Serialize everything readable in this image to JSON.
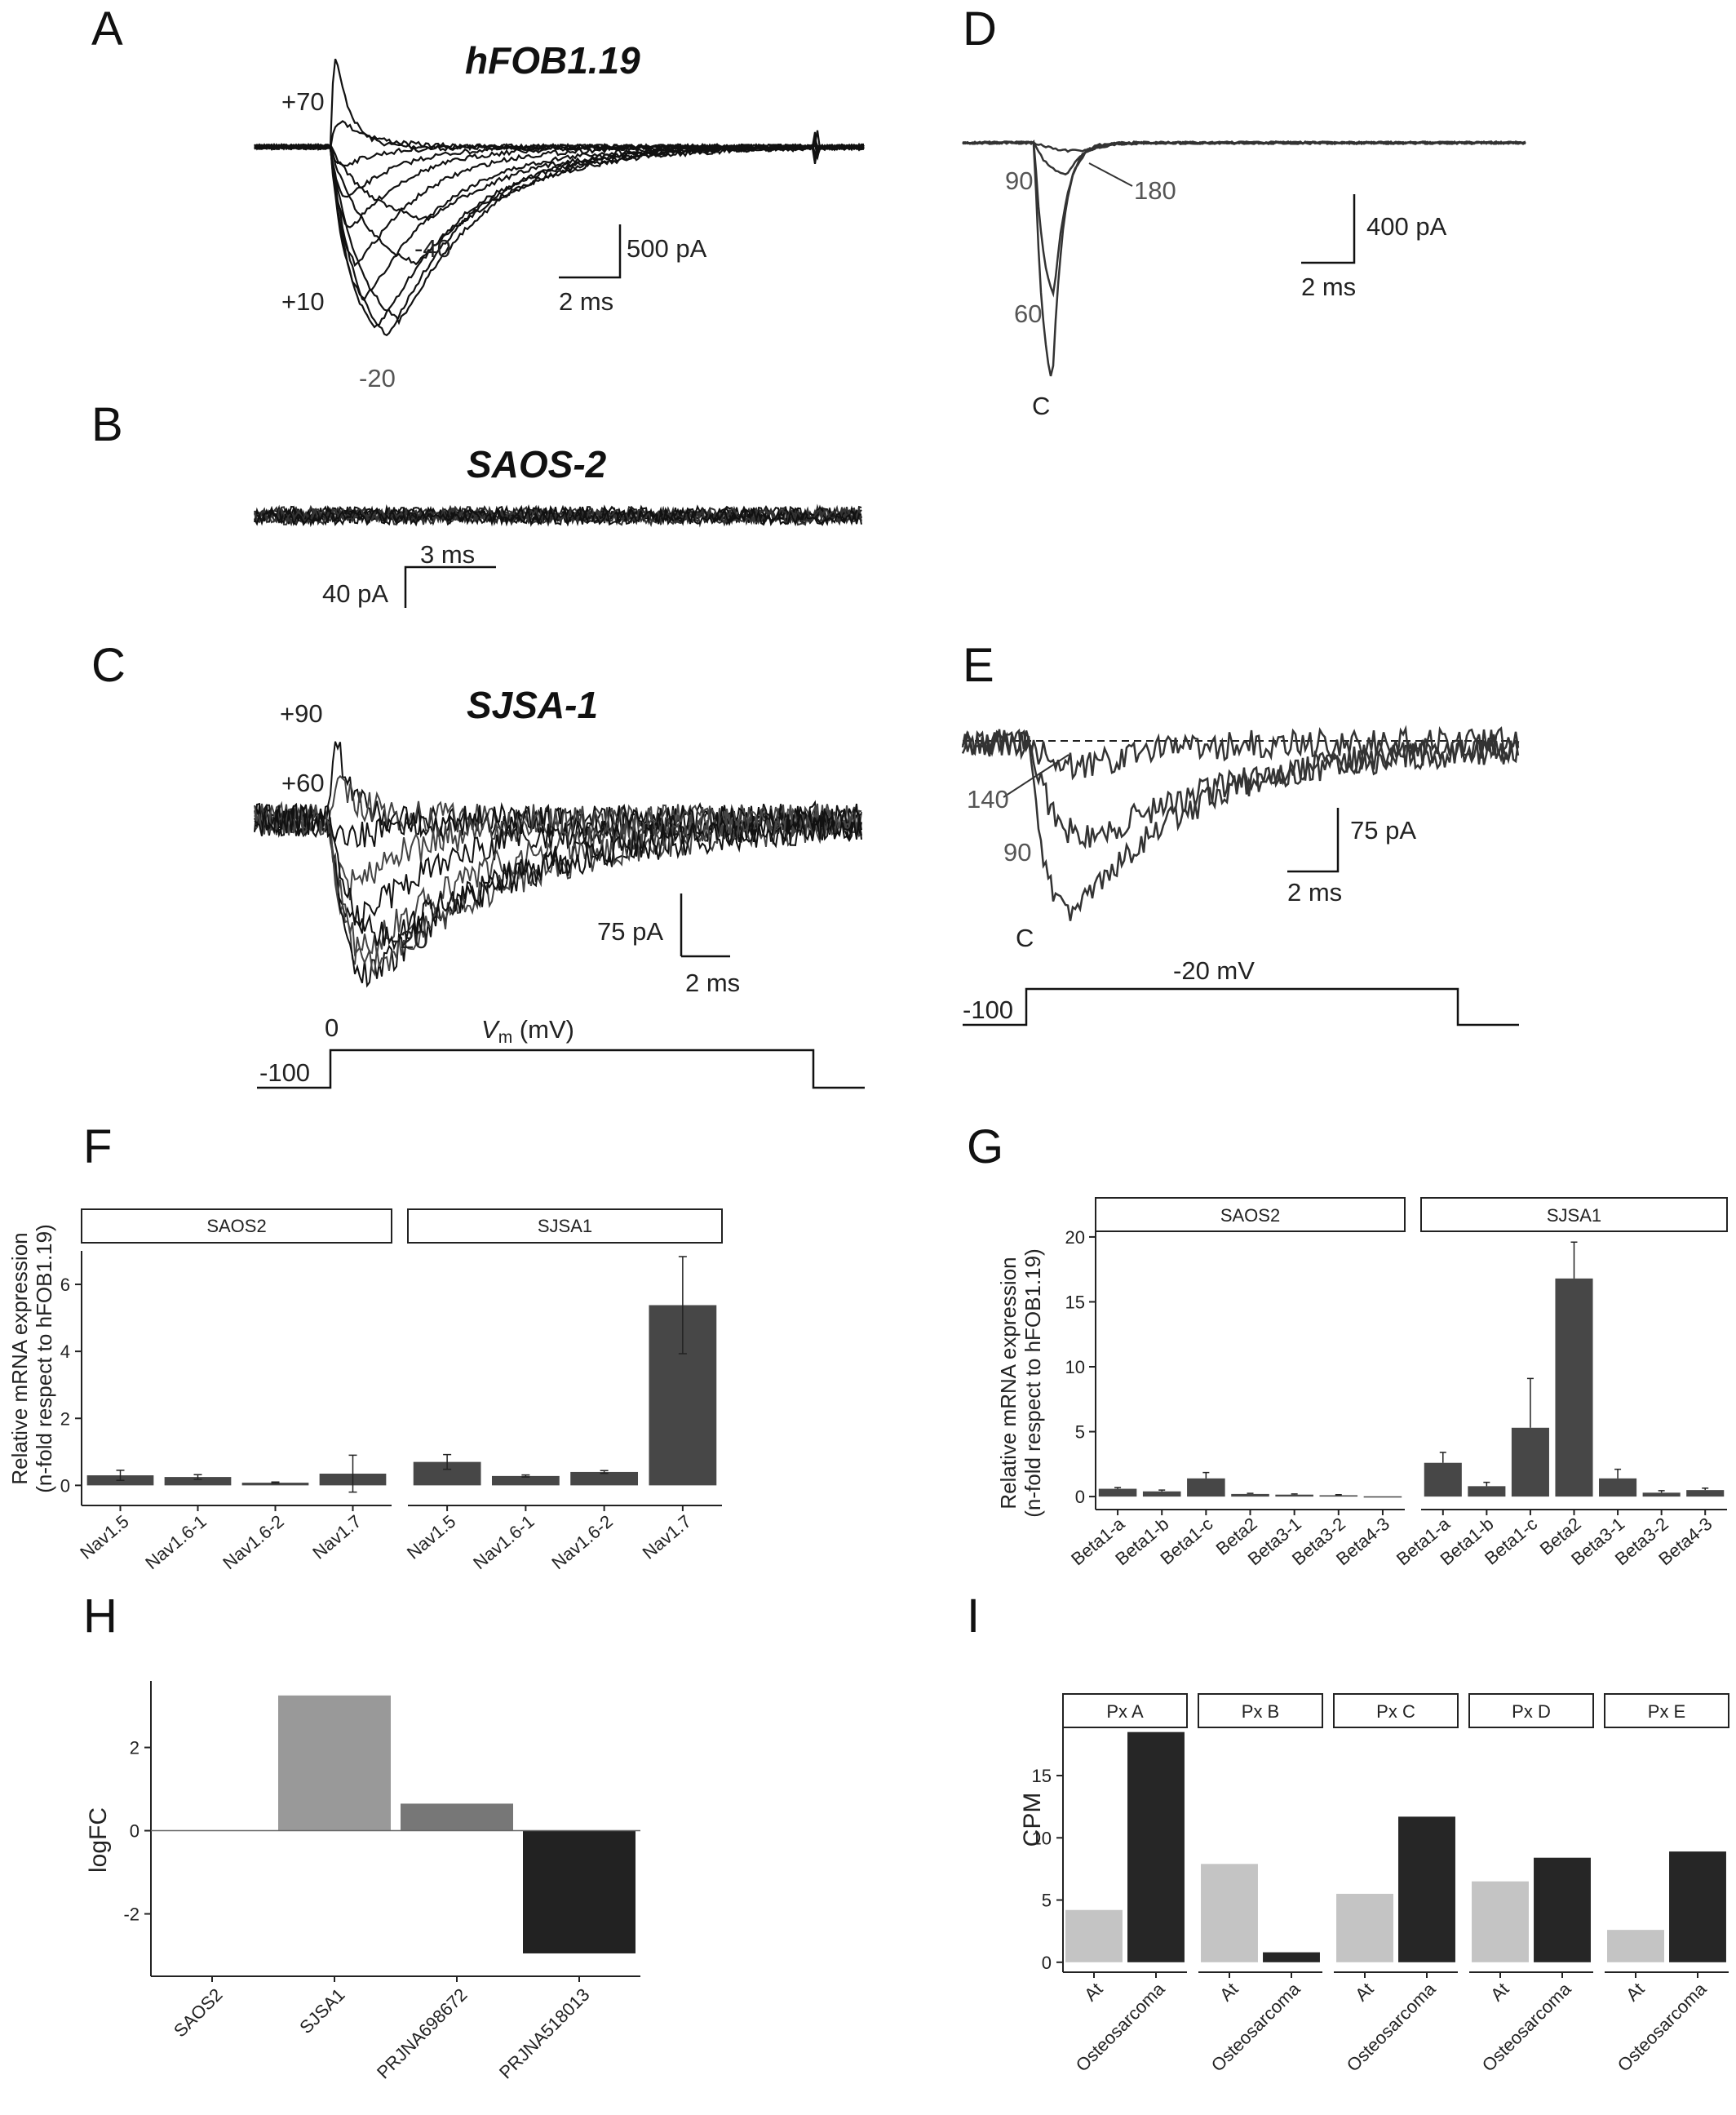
{
  "panels": [
    "A",
    "B",
    "C",
    "D",
    "E",
    "F",
    "G",
    "H",
    "I"
  ],
  "A": {
    "title": "hFOB1.19",
    "labels": [
      "+70",
      "+10",
      "-40",
      "-20"
    ],
    "scale_current": "500 pA",
    "scale_time": "2 ms"
  },
  "B": {
    "title": "SAOS-2",
    "scale_time": "3 ms",
    "scale_current": "40 pA"
  },
  "C": {
    "title": "SJSA-1",
    "labels": [
      "+90",
      "+60",
      "-20",
      "0"
    ],
    "scale_current": "75 pA",
    "scale_time": "2 ms",
    "protocol_label": "V",
    "protocol_sub": "m",
    "protocol_unit": " (mV)",
    "holding": "-100"
  },
  "D": {
    "labels": [
      "90",
      "180",
      "60",
      "C"
    ],
    "scale_current": "400 pA",
    "scale_time": "2 ms"
  },
  "E": {
    "labels": [
      "140",
      "90",
      "C"
    ],
    "scale_current": "75 pA",
    "scale_time": "2 ms",
    "step": "-20 mV",
    "holding": "-100"
  },
  "colors": {
    "trace": "#111111",
    "trace_grey": "#444444",
    "bar_dark": "#474747",
    "h_series": [
      "#999999",
      "#777777",
      "#222222"
    ],
    "i_at": "#c4c4c4",
    "i_osteo": "#262626"
  },
  "chart_data": [
    {
      "panel": "F",
      "type": "bar",
      "ylabel_line1": "Relative mRNA expression",
      "ylabel_line2": "(n-fold respect to hFOB1.19)",
      "ylim": [
        -0.6,
        7.0
      ],
      "yticks": [
        0,
        2,
        4,
        6
      ],
      "facets": [
        {
          "name": "SAOS2",
          "categories": [
            "Nav1.5",
            "Nav1.6-1",
            "Nav1.6-2",
            "Nav1.7"
          ],
          "values": [
            0.3,
            0.25,
            0.08,
            0.35
          ],
          "errors": [
            0.15,
            0.07,
            0.02,
            0.55
          ]
        },
        {
          "name": "SJSA1",
          "categories": [
            "Nav1.5",
            "Nav1.6-1",
            "Nav1.6-2",
            "Nav1.7"
          ],
          "values": [
            0.7,
            0.28,
            0.4,
            5.38
          ],
          "errors": [
            0.22,
            0.03,
            0.04,
            1.45
          ]
        }
      ]
    },
    {
      "panel": "G",
      "type": "bar",
      "ylabel_line1": "Relative mRNA expression",
      "ylabel_line2": "(n-fold respect to hFOB1.19)",
      "ylim": [
        -1.0,
        21.0
      ],
      "yticks": [
        0,
        5,
        10,
        15,
        20
      ],
      "facets": [
        {
          "name": "SAOS2",
          "categories": [
            "Beta1-a",
            "Beta1-b",
            "Beta1-c",
            "Beta2",
            "Beta3-1",
            "Beta3-2",
            "Beta4-3"
          ],
          "values": [
            0.6,
            0.4,
            1.4,
            0.2,
            0.15,
            0.1,
            0.02
          ],
          "errors": [
            0.1,
            0.1,
            0.45,
            0.05,
            0.05,
            0.05,
            0.0
          ]
        },
        {
          "name": "SJSA1",
          "categories": [
            "Beta1-a",
            "Beta1-b",
            "Beta1-c",
            "Beta2",
            "Beta3-1",
            "Beta3-2",
            "Beta4-3"
          ],
          "values": [
            2.6,
            0.8,
            5.3,
            16.8,
            1.4,
            0.3,
            0.5
          ],
          "errors": [
            0.8,
            0.3,
            3.8,
            2.8,
            0.7,
            0.15,
            0.15
          ]
        }
      ]
    },
    {
      "panel": "H",
      "type": "bar",
      "ylabel": "logFC",
      "ylim": [
        -3.5,
        3.6
      ],
      "yticks": [
        -2,
        0,
        2
      ],
      "categories": [
        "SAOS2",
        "SJSA1",
        "PRJNA698672",
        "PRJNA518013"
      ],
      "values": [
        0.0,
        3.25,
        0.65,
        -2.95
      ]
    },
    {
      "panel": "I",
      "type": "bar",
      "ylabel": "CPM",
      "ylim": [
        -0.8,
        19.2
      ],
      "yticks": [
        0,
        5,
        10,
        15
      ],
      "categories": [
        "At",
        "Osteosarcoma"
      ],
      "facets": [
        {
          "name": "Px A",
          "values": [
            4.2,
            18.5
          ]
        },
        {
          "name": "Px B",
          "values": [
            7.9,
            0.8
          ]
        },
        {
          "name": "Px C",
          "values": [
            5.5,
            11.7
          ]
        },
        {
          "name": "Px D",
          "values": [
            6.5,
            8.4
          ]
        },
        {
          "name": "Px E",
          "values": [
            2.6,
            8.9
          ]
        }
      ]
    }
  ]
}
